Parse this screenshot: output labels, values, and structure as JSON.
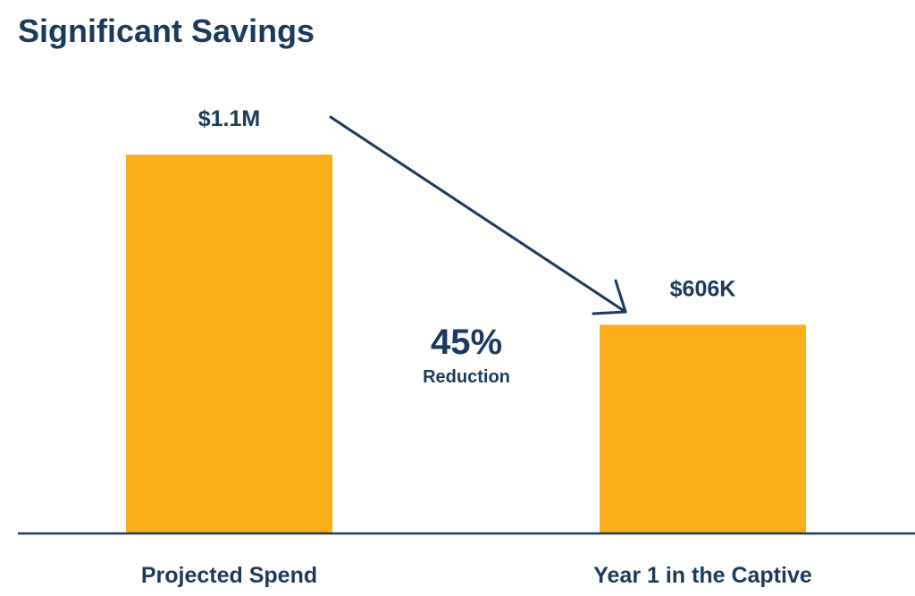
{
  "colors": {
    "text": "#1b3a5c",
    "bar": "#fbb01b",
    "axis": "#1b3a5c",
    "background": "#ffffff"
  },
  "chart_data": {
    "type": "bar",
    "title": "Significant Savings",
    "categories": [
      "Projected Spend",
      "Year 1 in the Captive"
    ],
    "values": [
      1100000,
      606000
    ],
    "data_labels": [
      "$1.1M",
      "$606K"
    ],
    "ylim": [
      0,
      1100000
    ],
    "xlabel": "",
    "ylabel": "",
    "grid": false,
    "annotation": {
      "type": "arrow",
      "from_category": "Projected Spend",
      "to_category": "Year 1 in the Captive",
      "value": "45%",
      "label": "Reduction"
    }
  }
}
